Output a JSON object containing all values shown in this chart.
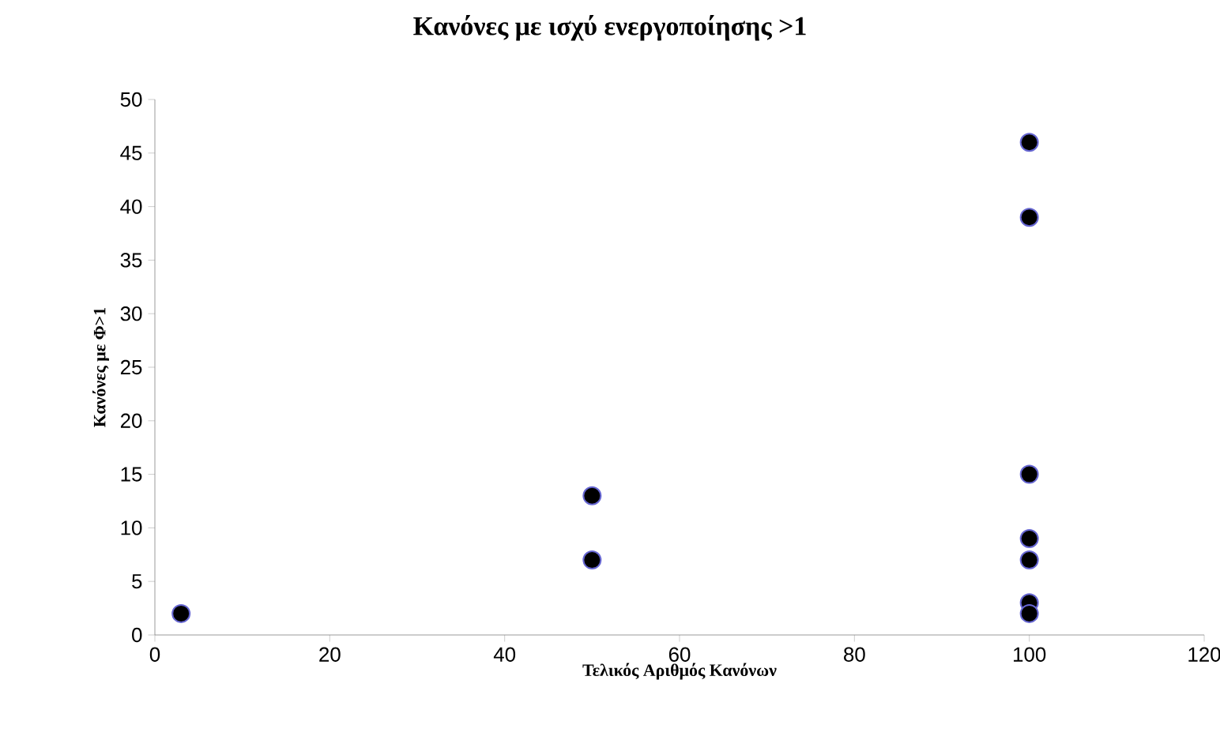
{
  "chart_data": {
    "type": "scatter",
    "title": "Κανόνες με ισχύ ενεργοποίησης >1",
    "xlabel": "Τελικός Αριθμός Κανόνων",
    "ylabel": "Κανόνες με Φ>1",
    "series": [
      {
        "color": "#000000",
        "x": [
          3,
          50,
          50,
          100,
          100,
          100,
          100,
          100,
          100,
          100
        ],
        "values": [
          2,
          13,
          7,
          46,
          39,
          15,
          9,
          7,
          3,
          2
        ]
      }
    ],
    "xlim": [
      0,
      120
    ],
    "xticks": [
      0,
      20,
      40,
      60,
      80,
      100,
      120
    ],
    "ylim": [
      0,
      50
    ],
    "yticks": [
      0,
      5,
      10,
      15,
      20,
      25,
      30,
      35,
      40,
      45,
      50
    ],
    "marker": "circle"
  }
}
